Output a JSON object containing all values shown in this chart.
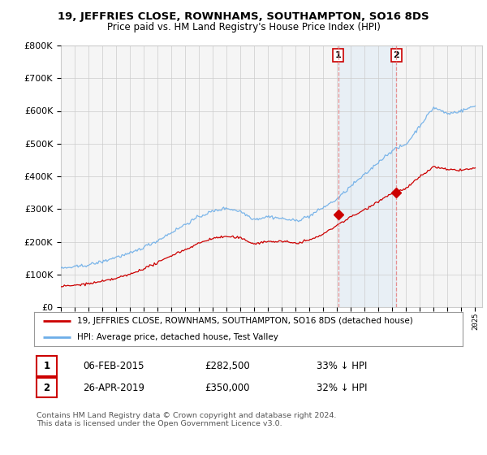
{
  "title": "19, JEFFRIES CLOSE, ROWNHAMS, SOUTHAMPTON, SO16 8DS",
  "subtitle": "Price paid vs. HM Land Registry's House Price Index (HPI)",
  "hpi_color": "#6daee8",
  "property_color": "#cc0000",
  "shade_color": "#ddeeff",
  "legend_property": "19, JEFFRIES CLOSE, ROWNHAMS, SOUTHAMPTON, SO16 8DS (detached house)",
  "legend_hpi": "HPI: Average price, detached house, Test Valley",
  "sale1_date": "06-FEB-2015",
  "sale1_price": "£282,500",
  "sale1_pct": "33% ↓ HPI",
  "sale2_date": "26-APR-2019",
  "sale2_price": "£350,000",
  "sale2_pct": "32% ↓ HPI",
  "footnote": "Contains HM Land Registry data © Crown copyright and database right 2024.\nThis data is licensed under the Open Government Licence v3.0.",
  "ylim": [
    0,
    800000
  ],
  "yticks": [
    0,
    100000,
    200000,
    300000,
    400000,
    500000,
    600000,
    700000,
    800000
  ],
  "background_color": "#f5f5f5",
  "plot_bg_color": "#f5f5f5",
  "grid_color": "#cccccc",
  "sale1_year": 2015.08,
  "sale2_year": 2019.29,
  "sale1_price_val": 282500,
  "sale2_price_val": 350000
}
